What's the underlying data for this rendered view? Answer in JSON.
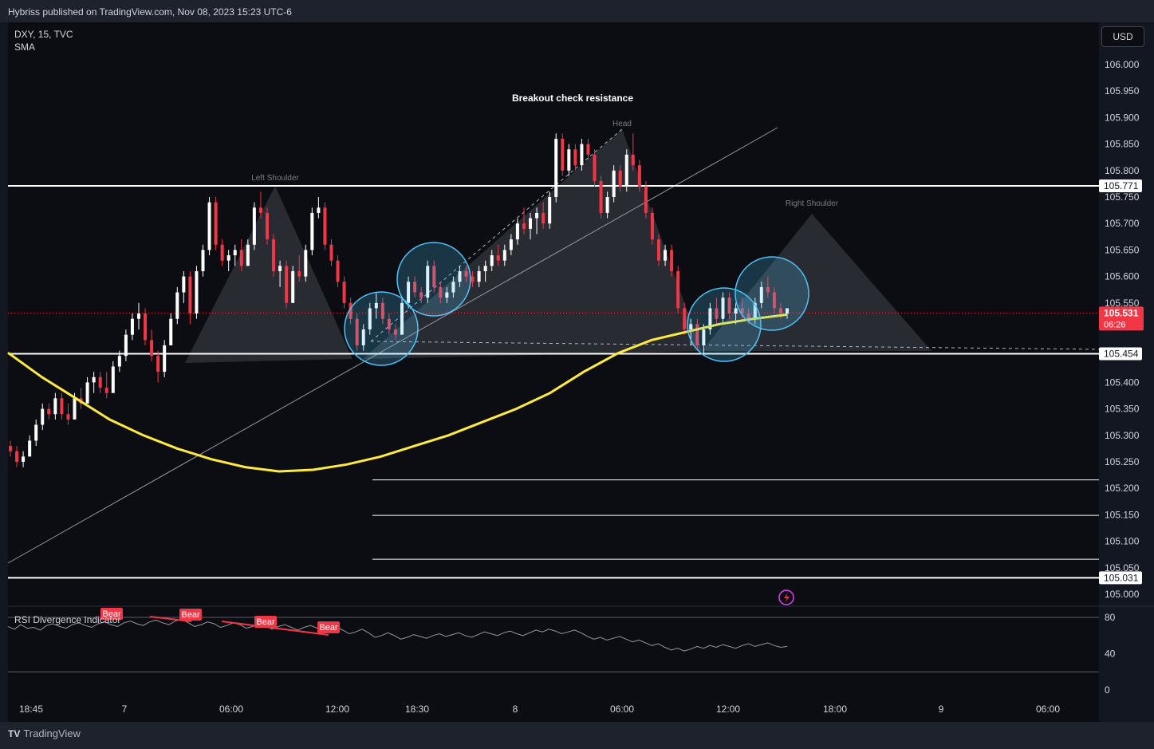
{
  "header": {
    "publisher_line": "Hybriss published on TradingView.com, Nov 08, 2023 15:23 UTC-6"
  },
  "legend": {
    "symbol_line": "DXY, 15, TVC",
    "indicator": "SMA"
  },
  "currency_button": "USD",
  "footer": {
    "brand": "TradingView"
  },
  "colors": {
    "background": "#0c0d12",
    "up_candle": "#ffffff",
    "down_candle": "#f23645",
    "sma": "#ffeb3b",
    "circle": "#4fc3f7",
    "price_tag": "#f23645"
  },
  "chart_data": {
    "type": "candlestick",
    "symbol": "DXY",
    "timeframe": "15",
    "source": "TVC",
    "ylim": [
      104.97,
      106.08
    ],
    "y_ticks": [
      "106.000",
      "105.950",
      "105.900",
      "105.850",
      "105.800",
      "105.750",
      "105.700",
      "105.650",
      "105.600",
      "105.550",
      "105.400",
      "105.350",
      "105.300",
      "105.250",
      "105.200",
      "105.150",
      "105.100",
      "105.050",
      "105.000"
    ],
    "x_ticks": [
      "18:45",
      "7",
      "06:00",
      "12:00",
      "18:30",
      "8",
      "06:00",
      "12:00",
      "18:00",
      "9",
      "06:00"
    ],
    "price_labels": [
      {
        "value": 105.771,
        "label": "105.771",
        "style": "white"
      },
      {
        "value": 105.454,
        "label": "105.454",
        "style": "white"
      },
      {
        "value": 105.031,
        "label": "105.031",
        "style": "white"
      },
      {
        "value": 105.531,
        "label": "105.531",
        "style": "current",
        "countdown": "06:26"
      }
    ],
    "horizontal_lines": [
      105.771,
      105.454,
      105.031,
      105.216,
      105.149,
      105.066
    ],
    "annotations": {
      "title": "Breakout check resistance",
      "left_shoulder": "Left Shoulder",
      "head": "Head",
      "right_shoulder": "Right Shoulder"
    },
    "ohlc": [
      [
        105.28,
        105.29,
        105.26,
        105.27
      ],
      [
        105.27,
        105.28,
        105.24,
        105.25
      ],
      [
        105.25,
        105.27,
        105.24,
        105.26
      ],
      [
        105.26,
        105.3,
        105.26,
        105.29
      ],
      [
        105.29,
        105.33,
        105.28,
        105.32
      ],
      [
        105.32,
        105.36,
        105.31,
        105.35
      ],
      [
        105.35,
        105.36,
        105.33,
        105.34
      ],
      [
        105.34,
        105.38,
        105.33,
        105.37
      ],
      [
        105.37,
        105.38,
        105.33,
        105.34
      ],
      [
        105.34,
        105.36,
        105.32,
        105.33
      ],
      [
        105.33,
        105.38,
        105.33,
        105.37
      ],
      [
        105.37,
        105.39,
        105.35,
        105.36
      ],
      [
        105.36,
        105.41,
        105.36,
        105.4
      ],
      [
        105.4,
        105.42,
        105.38,
        105.41
      ],
      [
        105.41,
        105.42,
        105.38,
        105.39
      ],
      [
        105.39,
        105.42,
        105.37,
        105.38
      ],
      [
        105.38,
        105.44,
        105.38,
        105.43
      ],
      [
        105.43,
        105.46,
        105.42,
        105.45
      ],
      [
        105.45,
        105.5,
        105.44,
        105.49
      ],
      [
        105.49,
        105.53,
        105.48,
        105.52
      ],
      [
        105.52,
        105.55,
        105.5,
        105.53
      ],
      [
        105.53,
        105.54,
        105.47,
        105.48
      ],
      [
        105.48,
        105.5,
        105.44,
        105.45
      ],
      [
        105.45,
        105.46,
        105.4,
        105.42
      ],
      [
        105.42,
        105.48,
        105.41,
        105.47
      ],
      [
        105.47,
        105.53,
        105.47,
        105.52
      ],
      [
        105.52,
        105.58,
        105.51,
        105.57
      ],
      [
        105.57,
        105.61,
        105.55,
        105.6
      ],
      [
        105.6,
        105.61,
        105.51,
        105.53
      ],
      [
        105.53,
        105.62,
        105.52,
        105.61
      ],
      [
        105.61,
        105.66,
        105.6,
        105.65
      ],
      [
        105.65,
        105.75,
        105.64,
        105.74
      ],
      [
        105.74,
        105.75,
        105.65,
        105.66
      ],
      [
        105.66,
        105.67,
        105.62,
        105.63
      ],
      [
        105.63,
        105.65,
        105.61,
        105.64
      ],
      [
        105.64,
        105.66,
        105.62,
        105.65
      ],
      [
        105.65,
        105.67,
        105.61,
        105.62
      ],
      [
        105.62,
        105.67,
        105.62,
        105.66
      ],
      [
        105.66,
        105.74,
        105.65,
        105.73
      ],
      [
        105.73,
        105.76,
        105.71,
        105.72
      ],
      [
        105.72,
        105.73,
        105.66,
        105.67
      ],
      [
        105.67,
        105.68,
        105.6,
        105.61
      ],
      [
        105.61,
        105.63,
        105.58,
        105.62
      ],
      [
        105.62,
        105.63,
        105.54,
        105.55
      ],
      [
        105.55,
        105.62,
        105.55,
        105.61
      ],
      [
        105.61,
        105.64,
        105.59,
        105.6
      ],
      [
        105.6,
        105.66,
        105.59,
        105.65
      ],
      [
        105.65,
        105.73,
        105.64,
        105.72
      ],
      [
        105.72,
        105.75,
        105.71,
        105.73
      ],
      [
        105.73,
        105.74,
        105.65,
        105.66
      ],
      [
        105.66,
        105.67,
        105.62,
        105.63
      ],
      [
        105.63,
        105.64,
        105.58,
        105.59
      ],
      [
        105.59,
        105.6,
        105.54,
        105.55
      ],
      [
        105.55,
        105.56,
        105.51,
        105.52
      ],
      [
        105.52,
        105.53,
        105.46,
        105.47
      ],
      [
        105.47,
        105.51,
        105.46,
        105.5
      ],
      [
        105.5,
        105.55,
        105.49,
        105.54
      ],
      [
        105.54,
        105.57,
        105.52,
        105.55
      ],
      [
        105.55,
        105.56,
        105.51,
        105.52
      ],
      [
        105.52,
        105.53,
        105.49,
        105.5
      ],
      [
        105.5,
        105.51,
        105.48,
        105.49
      ],
      [
        105.49,
        105.56,
        105.49,
        105.55
      ],
      [
        105.55,
        105.6,
        105.54,
        105.59
      ],
      [
        105.59,
        105.6,
        105.56,
        105.57
      ],
      [
        105.57,
        105.58,
        105.55,
        105.56
      ],
      [
        105.56,
        105.63,
        105.55,
        105.62
      ],
      [
        105.62,
        105.63,
        105.57,
        105.58
      ],
      [
        105.58,
        105.59,
        105.55,
        105.56
      ],
      [
        105.56,
        105.58,
        105.55,
        105.57
      ],
      [
        105.57,
        105.6,
        105.56,
        105.59
      ],
      [
        105.59,
        105.62,
        105.58,
        105.61
      ],
      [
        105.61,
        105.62,
        105.59,
        105.6
      ],
      [
        105.6,
        105.61,
        105.58,
        105.59
      ],
      [
        105.59,
        105.62,
        105.58,
        105.61
      ],
      [
        105.61,
        105.63,
        105.59,
        105.62
      ],
      [
        105.62,
        105.65,
        105.61,
        105.64
      ],
      [
        105.64,
        105.66,
        105.62,
        105.63
      ],
      [
        105.63,
        105.66,
        105.62,
        105.65
      ],
      [
        105.65,
        105.68,
        105.64,
        105.67
      ],
      [
        105.67,
        105.71,
        105.66,
        105.7
      ],
      [
        105.7,
        105.73,
        105.68,
        105.69
      ],
      [
        105.69,
        105.72,
        105.67,
        105.71
      ],
      [
        105.71,
        105.73,
        105.68,
        105.72
      ],
      [
        105.72,
        105.74,
        105.69,
        105.7
      ],
      [
        105.7,
        105.76,
        105.69,
        105.75
      ],
      [
        105.75,
        105.87,
        105.74,
        105.86
      ],
      [
        105.86,
        105.87,
        105.79,
        105.8
      ],
      [
        105.8,
        105.85,
        105.79,
        105.84
      ],
      [
        105.84,
        105.85,
        105.8,
        105.81
      ],
      [
        105.81,
        105.86,
        105.8,
        105.85
      ],
      [
        105.85,
        105.86,
        105.82,
        105.83
      ],
      [
        105.83,
        105.84,
        105.77,
        105.78
      ],
      [
        105.78,
        105.79,
        105.71,
        105.72
      ],
      [
        105.72,
        105.76,
        105.71,
        105.75
      ],
      [
        105.75,
        105.81,
        105.74,
        105.8
      ],
      [
        105.8,
        105.81,
        105.76,
        105.77
      ],
      [
        105.77,
        105.84,
        105.76,
        105.83
      ],
      [
        105.83,
        105.87,
        105.8,
        105.81
      ],
      [
        105.81,
        105.82,
        105.76,
        105.77
      ],
      [
        105.77,
        105.78,
        105.71,
        105.72
      ],
      [
        105.72,
        105.73,
        105.66,
        105.67
      ],
      [
        105.67,
        105.68,
        105.62,
        105.63
      ],
      [
        105.63,
        105.66,
        105.62,
        105.65
      ],
      [
        105.65,
        105.66,
        105.6,
        105.61
      ],
      [
        105.61,
        105.62,
        105.53,
        105.54
      ],
      [
        105.54,
        105.55,
        105.49,
        105.5
      ],
      [
        105.5,
        105.52,
        105.47,
        105.51
      ],
      [
        105.51,
        105.52,
        105.46,
        105.47
      ],
      [
        105.47,
        105.51,
        105.45,
        105.5
      ],
      [
        105.5,
        105.55,
        105.49,
        105.54
      ],
      [
        105.54,
        105.56,
        105.51,
        105.52
      ],
      [
        105.52,
        105.57,
        105.51,
        105.56
      ],
      [
        105.56,
        105.57,
        105.52,
        105.53
      ],
      [
        105.53,
        105.55,
        105.51,
        105.54
      ],
      [
        105.54,
        105.56,
        105.52,
        105.53
      ],
      [
        105.53,
        105.54,
        105.51,
        105.52
      ],
      [
        105.52,
        105.56,
        105.51,
        105.55
      ],
      [
        105.55,
        105.59,
        105.54,
        105.58
      ],
      [
        105.58,
        105.6,
        105.56,
        105.57
      ],
      [
        105.57,
        105.58,
        105.53,
        105.54
      ],
      [
        105.54,
        105.55,
        105.52,
        105.53
      ],
      [
        105.53,
        105.54,
        105.52,
        105.54
      ]
    ],
    "sma_path_values": [
      105.456,
      105.41,
      105.37,
      105.33,
      105.3,
      105.275,
      105.255,
      105.24,
      105.232,
      105.235,
      105.245,
      105.26,
      105.28,
      105.3,
      105.325,
      105.35,
      105.38,
      105.42,
      105.455,
      105.48,
      105.495,
      105.51,
      105.52,
      105.528
    ],
    "rsi": {
      "label": "RSI Divergence Indicator",
      "ylim": [
        0,
        90
      ],
      "y_ticks": [
        "80",
        "40",
        "0"
      ],
      "bear_labels": [
        "Bear",
        "Bear",
        "Bear",
        "Bear"
      ],
      "values": [
        70,
        67,
        72,
        68,
        69,
        66,
        71,
        73,
        70,
        68,
        72,
        74,
        71,
        69,
        73,
        75,
        72,
        70,
        74,
        76,
        73,
        71,
        75,
        77,
        74,
        72,
        76,
        78,
        74,
        70,
        72,
        75,
        73,
        69,
        71,
        74,
        72,
        68,
        70,
        73,
        71,
        67,
        70,
        72,
        69,
        66,
        69,
        71,
        68,
        64,
        67,
        70,
        66,
        62,
        64,
        67,
        63,
        58,
        60,
        63,
        60,
        56,
        58,
        61,
        59,
        57,
        60,
        62,
        59,
        61,
        63,
        60,
        58,
        61,
        64,
        62,
        60,
        63,
        65,
        62,
        60,
        63,
        66,
        64,
        67,
        65,
        62,
        64,
        66,
        63,
        59,
        56,
        58,
        55,
        57,
        59,
        56,
        53,
        55,
        52,
        49,
        51,
        47,
        44,
        46,
        43,
        45,
        48,
        46,
        49,
        47,
        50,
        48,
        46,
        49,
        51,
        48,
        50,
        52,
        49,
        47,
        48
      ]
    }
  }
}
